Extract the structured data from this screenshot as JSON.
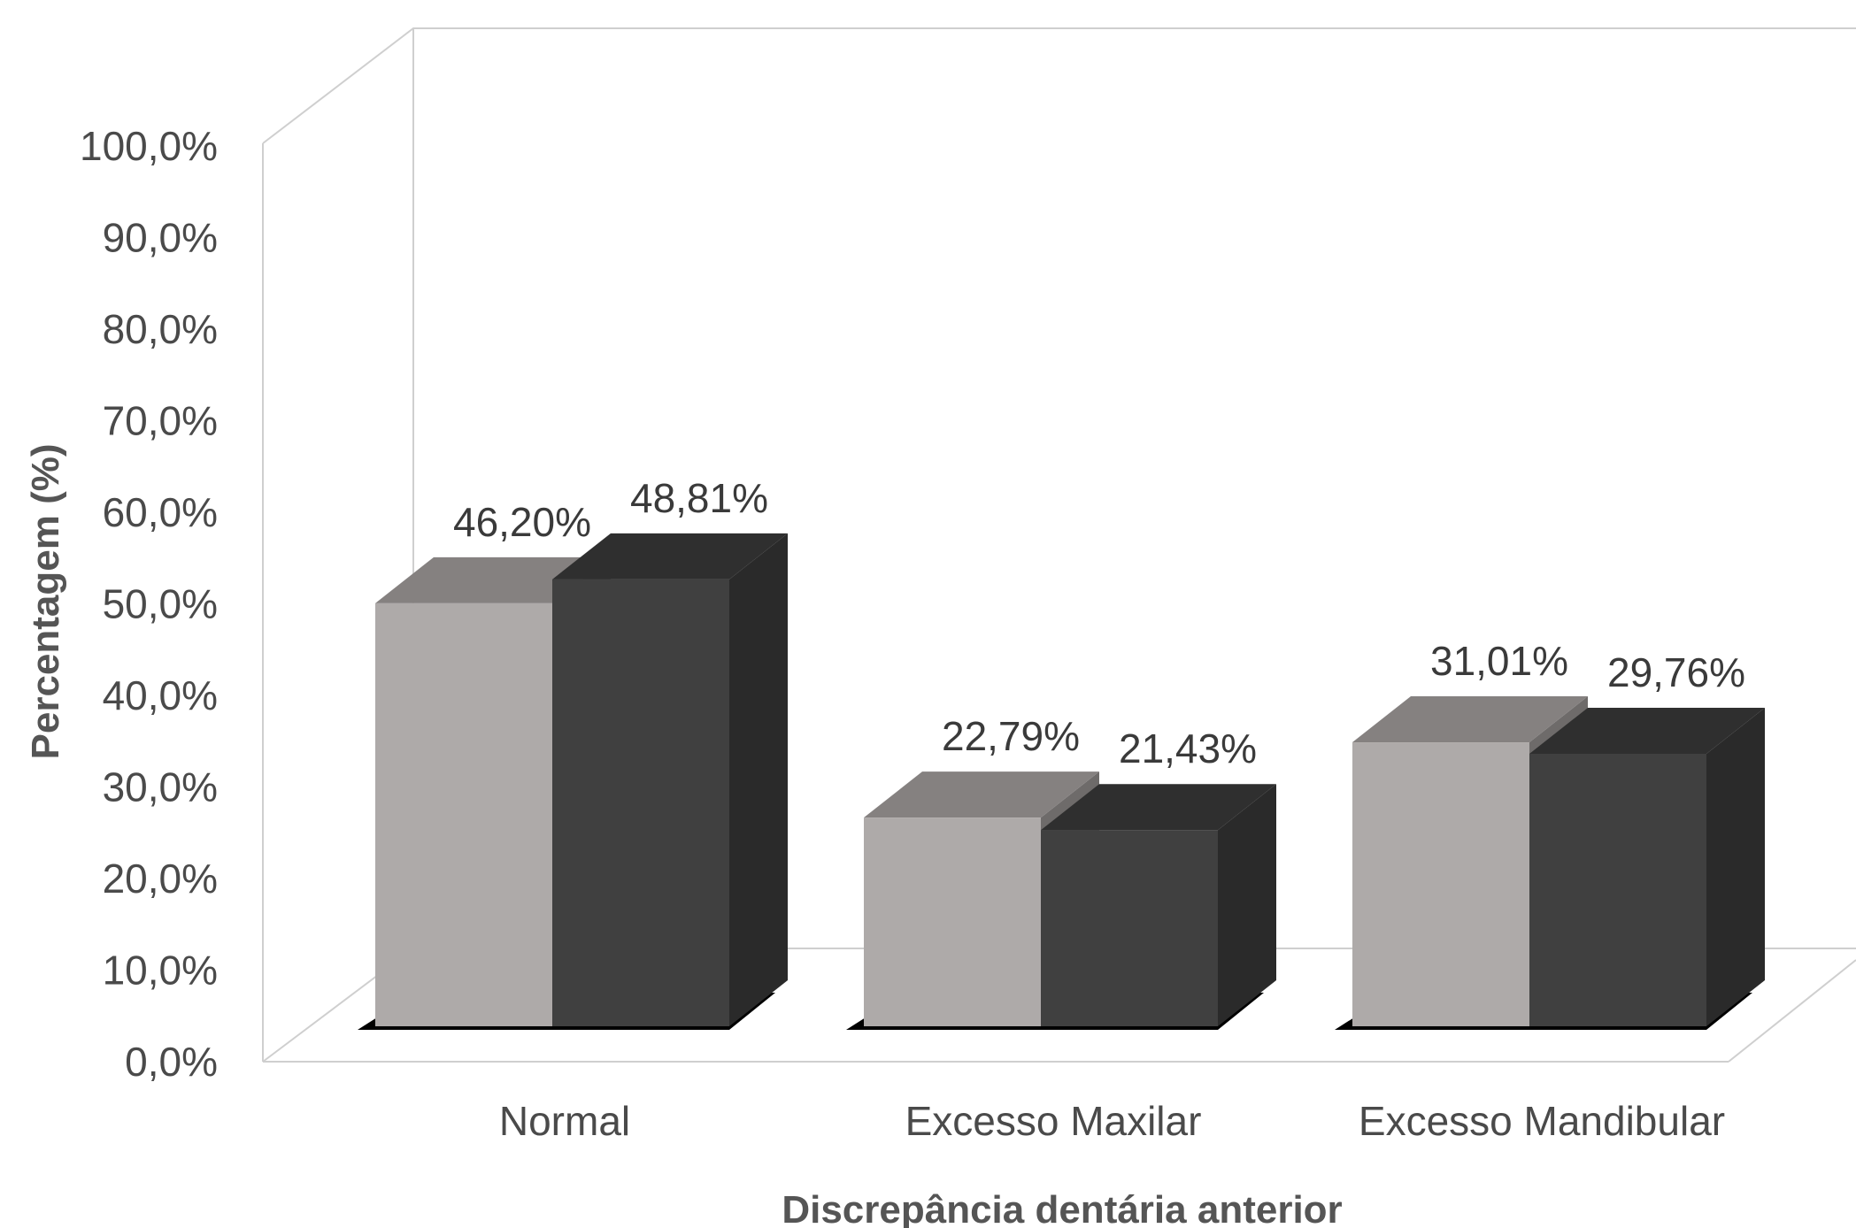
{
  "chart_data": {
    "type": "bar",
    "title": "",
    "xlabel": "Discrepância dentária anterior",
    "ylabel": "Percentagem (%)",
    "ylim": [
      0,
      100
    ],
    "yticks": [
      "0,0%",
      "10,0%",
      "20,0%",
      "30,0%",
      "40,0%",
      "50,0%",
      "60,0%",
      "70,0%",
      "80,0%",
      "90,0%",
      "100,0%"
    ],
    "categories": [
      "Normal",
      "Excesso Maxilar",
      "Excesso Mandibular"
    ],
    "series": [
      {
        "values": [
          46.2,
          22.79,
          31.01
        ],
        "labels": [
          "46,20%",
          "22,79%",
          "31,01%"
        ],
        "color": "#aeaaa9",
        "top_color": "#858180",
        "side_color": "#6e6b6a"
      },
      {
        "values": [
          48.81,
          21.43,
          29.76
        ],
        "labels": [
          "48,81%",
          "21,43%",
          "29,76%"
        ],
        "color": "#404040",
        "top_color": "#2f2f2f",
        "side_color": "#2a2a2a"
      }
    ],
    "grid": false,
    "legend": "none",
    "style": "3d-clustered-column"
  }
}
